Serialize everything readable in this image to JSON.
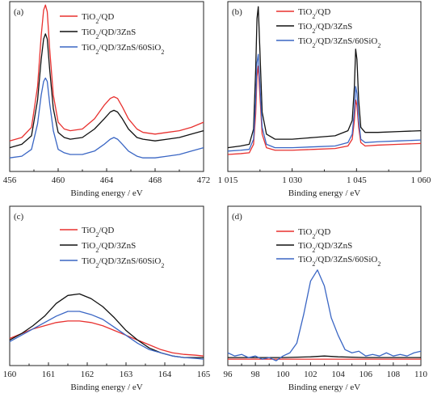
{
  "chart_data": [
    {
      "type": "line",
      "panel_label": "(a)",
      "xlabel": "Binding energy / eV",
      "ylabel": "",
      "xlim": [
        456,
        472
      ],
      "ylim": [
        0,
        1
      ],
      "xticks": [
        "456",
        "460",
        "464",
        "468",
        "472"
      ],
      "xtick_values": [
        456,
        460,
        464,
        468,
        472
      ],
      "legend": "top-right",
      "legend_sub": [
        "2",
        "",
        "2"
      ],
      "colors": [
        "#e8312f",
        "#111111",
        "#3a66c4"
      ],
      "series": [
        {
          "name": "TiO2/QD",
          "color": "#e8312f",
          "x": [
            456,
            457,
            457.8,
            458.3,
            458.6,
            458.8,
            458.95,
            459.1,
            459.3,
            459.6,
            460,
            460.5,
            461,
            462,
            463,
            463.8,
            464.3,
            464.6,
            464.9,
            465.3,
            465.8,
            466.5,
            467,
            468,
            469,
            470,
            471,
            472
          ],
          "y": [
            0.18,
            0.2,
            0.26,
            0.5,
            0.8,
            0.95,
            0.98,
            0.94,
            0.72,
            0.45,
            0.29,
            0.25,
            0.24,
            0.25,
            0.31,
            0.39,
            0.43,
            0.44,
            0.43,
            0.38,
            0.31,
            0.25,
            0.23,
            0.22,
            0.23,
            0.24,
            0.26,
            0.29
          ]
        },
        {
          "name": "TiO2/QD/3ZnS",
          "color": "#111111",
          "x": [
            456,
            457,
            457.8,
            458.3,
            458.6,
            458.8,
            458.95,
            459.1,
            459.3,
            459.6,
            460,
            460.5,
            461,
            462,
            463,
            463.8,
            464.3,
            464.6,
            464.9,
            465.3,
            465.8,
            466.5,
            467,
            468,
            469,
            470,
            471,
            472
          ],
          "y": [
            0.14,
            0.16,
            0.21,
            0.42,
            0.66,
            0.78,
            0.81,
            0.78,
            0.6,
            0.37,
            0.23,
            0.2,
            0.19,
            0.2,
            0.25,
            0.31,
            0.35,
            0.36,
            0.35,
            0.31,
            0.25,
            0.2,
            0.19,
            0.18,
            0.19,
            0.2,
            0.22,
            0.24
          ]
        },
        {
          "name": "TiO2/QD/3ZnS/60SiO2",
          "color": "#3a66c4",
          "x": [
            456,
            457,
            457.8,
            458.3,
            458.6,
            458.8,
            458.95,
            459.1,
            459.3,
            459.6,
            460,
            460.5,
            461,
            462,
            463,
            463.8,
            464.3,
            464.6,
            464.9,
            465.3,
            465.8,
            466.5,
            467,
            468,
            469,
            470,
            471,
            472
          ],
          "y": [
            0.08,
            0.09,
            0.13,
            0.28,
            0.45,
            0.53,
            0.55,
            0.53,
            0.4,
            0.24,
            0.13,
            0.11,
            0.1,
            0.1,
            0.12,
            0.16,
            0.19,
            0.2,
            0.19,
            0.16,
            0.12,
            0.09,
            0.08,
            0.08,
            0.09,
            0.1,
            0.12,
            0.14
          ]
        }
      ]
    },
    {
      "type": "line",
      "panel_label": "(b)",
      "xlabel": "Binding energy / eV",
      "ylabel": "",
      "xlim": [
        1015,
        1060
      ],
      "ylim": [
        0,
        1
      ],
      "xticks": [
        "1 015",
        "1 030",
        "1 045",
        "1 060"
      ],
      "xtick_values": [
        1015,
        1030,
        1045,
        1060
      ],
      "legend": "top-right",
      "legend_sub": [
        "2",
        "",
        "2"
      ],
      "colors": [
        "#e8312f",
        "#111111",
        "#3a66c4"
      ],
      "series": [
        {
          "name": "TiO2/QD",
          "color": "#e8312f",
          "x": [
            1015,
            1018,
            1020,
            1021,
            1021.5,
            1021.8,
            1022.1,
            1022.5,
            1023,
            1024,
            1026,
            1030,
            1035,
            1040,
            1043,
            1044,
            1044.5,
            1044.8,
            1045.1,
            1045.5,
            1046,
            1047,
            1050,
            1055,
            1060
          ],
          "y": [
            0.1,
            0.105,
            0.11,
            0.16,
            0.34,
            0.56,
            0.62,
            0.44,
            0.22,
            0.14,
            0.125,
            0.125,
            0.13,
            0.135,
            0.15,
            0.19,
            0.3,
            0.42,
            0.39,
            0.26,
            0.17,
            0.15,
            0.155,
            0.16,
            0.165
          ]
        },
        {
          "name": "TiO2/QD/3ZnS",
          "color": "#111111",
          "x": [
            1015,
            1018,
            1020,
            1021,
            1021.5,
            1021.8,
            1022.1,
            1022.5,
            1023,
            1024,
            1026,
            1030,
            1035,
            1040,
            1043,
            1044,
            1044.5,
            1044.8,
            1045.1,
            1045.5,
            1046,
            1047,
            1050,
            1055,
            1060
          ],
          "y": [
            0.14,
            0.15,
            0.16,
            0.25,
            0.6,
            0.9,
            0.97,
            0.7,
            0.35,
            0.22,
            0.19,
            0.19,
            0.2,
            0.21,
            0.24,
            0.3,
            0.5,
            0.72,
            0.66,
            0.42,
            0.26,
            0.23,
            0.23,
            0.235,
            0.24
          ]
        },
        {
          "name": "TiO2/QD/3ZnS/60SiO2",
          "color": "#3a66c4",
          "x": [
            1015,
            1018,
            1020,
            1021,
            1021.5,
            1021.8,
            1022.1,
            1022.5,
            1023,
            1024,
            1026,
            1030,
            1035,
            1040,
            1043,
            1044,
            1044.5,
            1044.8,
            1045.1,
            1045.5,
            1046,
            1047,
            1050,
            1055,
            1060
          ],
          "y": [
            0.12,
            0.125,
            0.13,
            0.19,
            0.42,
            0.64,
            0.69,
            0.5,
            0.26,
            0.16,
            0.14,
            0.14,
            0.145,
            0.15,
            0.17,
            0.22,
            0.36,
            0.5,
            0.46,
            0.3,
            0.19,
            0.17,
            0.175,
            0.18,
            0.185
          ]
        }
      ]
    },
    {
      "type": "line",
      "panel_label": "(c)",
      "xlabel": "Binding energy / eV",
      "ylabel": "",
      "xlim": [
        160,
        165
      ],
      "ylim": [
        0,
        1
      ],
      "xticks": [
        "160",
        "161",
        "162",
        "163",
        "164",
        "165"
      ],
      "xtick_values": [
        160,
        161,
        162,
        163,
        164,
        165
      ],
      "legend": "top-right",
      "legend_sub": [
        "2",
        "2",
        "2"
      ],
      "colors": [
        "#e8312f",
        "#111111",
        "#3a66c4"
      ],
      "series": [
        {
          "name": "TiO2/QD",
          "color": "#e8312f",
          "x": [
            160,
            160.3,
            160.6,
            160.9,
            161.2,
            161.5,
            161.8,
            162.1,
            162.4,
            162.7,
            163,
            163.3,
            163.6,
            163.9,
            164.2,
            164.5,
            164.8,
            165
          ],
          "y": [
            0.17,
            0.2,
            0.23,
            0.25,
            0.27,
            0.28,
            0.28,
            0.27,
            0.25,
            0.22,
            0.19,
            0.16,
            0.13,
            0.1,
            0.08,
            0.07,
            0.065,
            0.06
          ]
        },
        {
          "name": "TiO2/QD/3ZnS",
          "color": "#111111",
          "x": [
            160,
            160.3,
            160.6,
            160.9,
            161.2,
            161.5,
            161.8,
            162.1,
            162.4,
            162.7,
            163,
            163.3,
            163.6,
            163.9,
            164.2,
            164.5,
            164.8,
            165
          ],
          "y": [
            0.16,
            0.2,
            0.25,
            0.31,
            0.39,
            0.44,
            0.45,
            0.42,
            0.37,
            0.3,
            0.22,
            0.16,
            0.11,
            0.08,
            0.06,
            0.05,
            0.05,
            0.05
          ]
        },
        {
          "name": "TiO2/QD/3ZnS/60SiO2",
          "color": "#3a66c4",
          "x": [
            160,
            160.3,
            160.6,
            160.9,
            161.2,
            161.5,
            161.8,
            162.1,
            162.4,
            162.7,
            163,
            163.3,
            163.6,
            163.9,
            164.2,
            164.5,
            164.8,
            165
          ],
          "y": [
            0.15,
            0.19,
            0.23,
            0.27,
            0.31,
            0.34,
            0.34,
            0.32,
            0.29,
            0.24,
            0.19,
            0.14,
            0.1,
            0.08,
            0.06,
            0.05,
            0.045,
            0.04
          ]
        }
      ]
    },
    {
      "type": "line",
      "panel_label": "(d)",
      "xlabel": "Binding energy / eV",
      "ylabel": "",
      "xlim": [
        96,
        110
      ],
      "ylim": [
        0,
        1
      ],
      "xticks": [
        "96",
        "98",
        "100",
        "102",
        "104",
        "106",
        "108",
        "110"
      ],
      "xtick_values": [
        96,
        98,
        100,
        102,
        104,
        106,
        108,
        110
      ],
      "legend": "top-right",
      "legend_sub": [
        "2",
        "2",
        "2"
      ],
      "colors": [
        "#e8312f",
        "#111111",
        "#3a66c4"
      ],
      "series": [
        {
          "name": "TiO2/QD",
          "color": "#e8312f",
          "x": [
            96,
            98,
            100,
            102,
            104,
            106,
            108,
            110
          ],
          "y": [
            0.04,
            0.04,
            0.04,
            0.04,
            0.04,
            0.04,
            0.04,
            0.04
          ]
        },
        {
          "name": "TiO2/QD/3ZnS",
          "color": "#111111",
          "x": [
            96,
            98,
            100,
            102,
            103,
            104,
            106,
            108,
            110
          ],
          "y": [
            0.05,
            0.05,
            0.05,
            0.055,
            0.06,
            0.055,
            0.05,
            0.05,
            0.05
          ]
        },
        {
          "name": "TiO2/QD/3ZnS/60SiO2",
          "color": "#3a66c4",
          "x": [
            96,
            96.5,
            97,
            97.5,
            98,
            98.5,
            99,
            99.5,
            100,
            100.5,
            101,
            101.5,
            102,
            102.5,
            103,
            103.5,
            104,
            104.5,
            105,
            105.5,
            106,
            106.5,
            107,
            107.5,
            108,
            108.5,
            109,
            109.5,
            110
          ],
          "y": [
            0.08,
            0.06,
            0.07,
            0.05,
            0.06,
            0.04,
            0.05,
            0.03,
            0.06,
            0.08,
            0.14,
            0.32,
            0.53,
            0.6,
            0.5,
            0.3,
            0.19,
            0.1,
            0.08,
            0.09,
            0.06,
            0.07,
            0.06,
            0.08,
            0.06,
            0.07,
            0.06,
            0.08,
            0.09
          ]
        }
      ]
    }
  ]
}
